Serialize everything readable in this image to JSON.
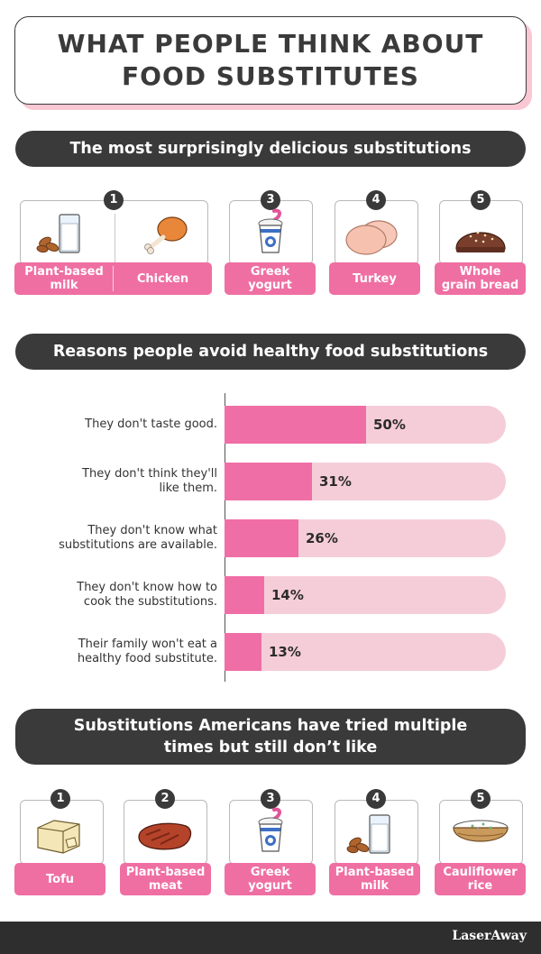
{
  "title": {
    "line1": "WHAT PEOPLE THINK ABOUT",
    "line2": "FOOD SUBSTITUTES"
  },
  "section1": {
    "heading": "The most surprisingly delicious substitutions",
    "items": [
      {
        "rank": "1",
        "label_lines": [
          "Plant-based",
          "milk"
        ],
        "icon": "milk-glass-with-almonds-icon"
      },
      {
        "rank": "",
        "label_lines": [
          "Chicken"
        ],
        "icon": "chicken-drumstick-icon"
      },
      {
        "rank": "3",
        "label_lines": [
          "Greek",
          "yogurt"
        ],
        "icon": "yogurt-cup-icon"
      },
      {
        "rank": "4",
        "label_lines": [
          "Turkey"
        ],
        "icon": "turkey-slices-icon"
      },
      {
        "rank": "5",
        "label_lines": [
          "Whole",
          "grain bread"
        ],
        "icon": "bread-bun-icon"
      }
    ]
  },
  "section2": {
    "heading": "Reasons people avoid healthy food substitutions"
  },
  "chart_data": {
    "type": "bar",
    "orientation": "horizontal",
    "title": "Reasons people avoid healthy food substitutions",
    "categories": [
      [
        "They don't taste good."
      ],
      [
        "They don't think they'll",
        "like them."
      ],
      [
        "They don't know what",
        "substitutions are available."
      ],
      [
        "They don't know how to",
        "cook the substitutions."
      ],
      [
        "Their family won't eat a",
        "healthy food substitute."
      ]
    ],
    "values": [
      50,
      31,
      26,
      14,
      13
    ],
    "value_labels": [
      "50%",
      "31%",
      "26%",
      "14%",
      "13%"
    ],
    "xlim": [
      0,
      100
    ],
    "colors": {
      "bar": "#f06ea6",
      "track": "#f5cdd8"
    }
  },
  "section3": {
    "heading_lines": [
      "Substitutions Americans have tried multiple",
      "times but still don’t like"
    ],
    "items": [
      {
        "rank": "1",
        "label_lines": [
          "Tofu"
        ],
        "icon": "tofu-block-icon"
      },
      {
        "rank": "2",
        "label_lines": [
          "Plant-based",
          "meat"
        ],
        "icon": "steak-icon"
      },
      {
        "rank": "3",
        "label_lines": [
          "Greek",
          "yogurt"
        ],
        "icon": "yogurt-cup-icon"
      },
      {
        "rank": "4",
        "label_lines": [
          "Plant-based",
          "milk"
        ],
        "icon": "milk-glass-with-almonds-icon"
      },
      {
        "rank": "5",
        "label_lines": [
          "Cauliflower",
          "rice"
        ],
        "icon": "cauliflower-rice-bowl-icon"
      }
    ]
  },
  "footer": {
    "brand": "LaserAway"
  },
  "colors": {
    "dark": "#3a3a3a",
    "pink": "#ef6fa3",
    "light_pink": "#f9c8d4"
  }
}
